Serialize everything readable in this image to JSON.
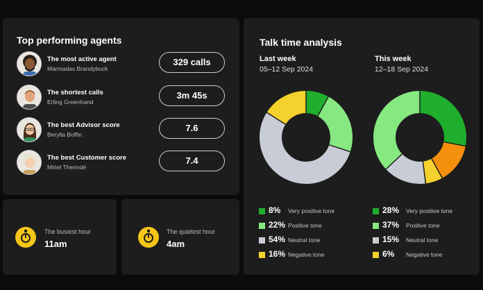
{
  "agents_panel": {
    "title": "Top performing agents",
    "rows": [
      {
        "title": "The most active agent",
        "name": "Marmadas Brandybuck",
        "value": "329 calls"
      },
      {
        "title": "The shortest calls",
        "name": "Erling Greenhand",
        "value": "3m 45s"
      },
      {
        "title": "The best Advisor score",
        "name": "Berylla Boffin",
        "value": "7.6"
      },
      {
        "title": "The best Customer score",
        "name": "Miriel Therindé",
        "value": "7.4"
      }
    ]
  },
  "busiest": {
    "label": "The busiest hour",
    "value": "11am",
    "icon": "stopwatch-icon"
  },
  "quietest": {
    "label": "The quietest hour",
    "value": "4am",
    "icon": "stopwatch-icon"
  },
  "talk_panel": {
    "title": "Talk time analysis",
    "last_week": {
      "title": "Last week",
      "dates": "05–12 Sep 2024",
      "legend": [
        {
          "pct": "8%",
          "tone": "Very positive tone",
          "color": "#1fae2e",
          "value": 8
        },
        {
          "pct": "22%",
          "tone": "Positive tone",
          "color": "#86e881",
          "value": 22
        },
        {
          "pct": "54%",
          "tone": "Neutral tone",
          "color": "#c8ccd6",
          "value": 54
        },
        {
          "pct": "16%",
          "tone": "Negative tone",
          "color": "#f5d12e",
          "value": 16
        }
      ]
    },
    "this_week": {
      "title": "This week",
      "dates": "12–18 Sep 2024",
      "legend": [
        {
          "pct": "28%",
          "tone": "Very positive tone",
          "color": "#1fae2e",
          "value": 28
        },
        {
          "pct": "37%",
          "tone": "Positive tone",
          "color": "#86e881",
          "value": 37
        },
        {
          "pct": "15%",
          "tone": "Neutral tone",
          "color": "#c8ccd6",
          "value": 15
        },
        {
          "pct": "6%",
          "tone": "Negative tone",
          "color": "#f5d12e",
          "value": 6
        }
      ],
      "extra_segment": {
        "color": "#f4900c",
        "value": 14
      }
    }
  },
  "chart_data": [
    {
      "type": "pie",
      "title": "Last week",
      "categories": [
        "Very positive tone",
        "Positive tone",
        "Neutral tone",
        "Negative tone"
      ],
      "values": [
        8,
        22,
        54,
        16
      ],
      "colors": [
        "#1fae2e",
        "#86e881",
        "#c8ccd6",
        "#f5d12e"
      ]
    },
    {
      "type": "pie",
      "title": "This week",
      "categories": [
        "Very positive tone",
        "",
        "Negative tone",
        "Neutral tone",
        "Positive tone"
      ],
      "values": [
        28,
        14,
        6,
        15,
        37
      ],
      "colors": [
        "#1fae2e",
        "#f4900c",
        "#f5d12e",
        "#c8ccd6",
        "#86e881"
      ]
    }
  ]
}
